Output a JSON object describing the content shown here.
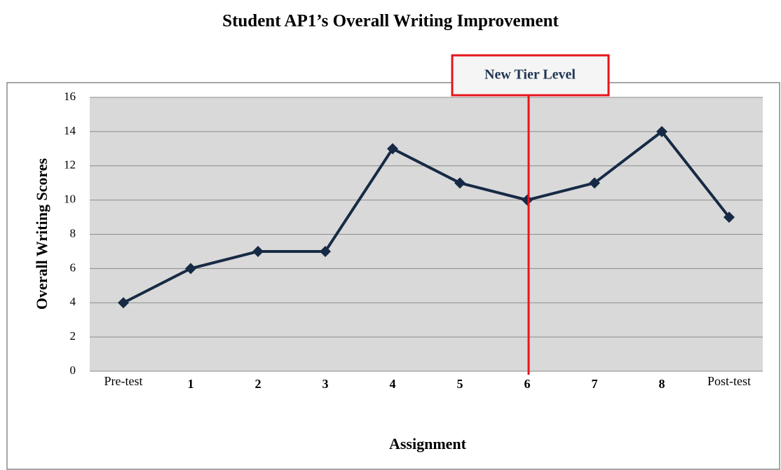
{
  "chart_data": {
    "type": "line",
    "title": "Student AP1’s Overall Writing Improvement",
    "annotation": "New Tier Level",
    "x_label": "Assignment",
    "y_label": "Overall Writing Scores",
    "categories": [
      "Pre-test",
      "1",
      "2",
      "3",
      "4",
      "5",
      "6",
      "7",
      "8",
      "Post-test"
    ],
    "values": [
      4,
      6,
      7,
      7,
      13,
      11,
      10,
      11,
      14,
      9
    ],
    "color": "#172a45",
    "ylim": [
      0,
      16
    ],
    "yticks": [
      0,
      2,
      4,
      6,
      8,
      10,
      12,
      14,
      16
    ],
    "grid": true
  }
}
